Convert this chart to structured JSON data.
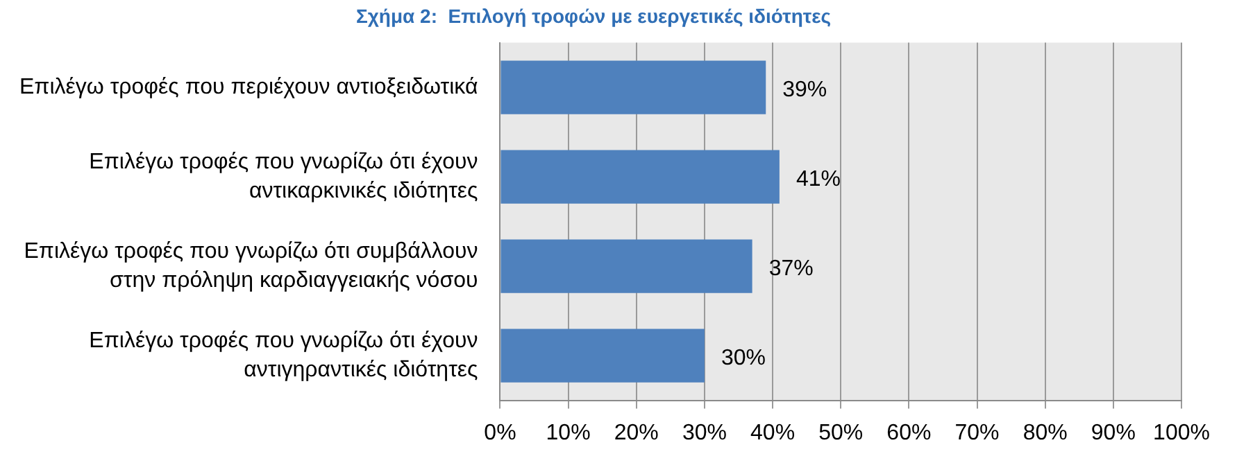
{
  "chart_data": {
    "type": "bar",
    "orientation": "horizontal",
    "title": "Σχήμα 2:  Επιλογή τροφών με ευεργετικές ιδιότητες",
    "categories": [
      "Επιλέγω τροφές που περιέχουν αντιοξειδωτικά",
      "Επιλέγω τροφές που γνωρίζω ότι έχουν αντικαρκινικές ιδιότητες",
      "Επιλέγω τροφές που γνωρίζω ότι συμβάλλουν στην πρόληψη καρδιαγγειακής νόσου",
      "Επιλέγω τροφές που γνωρίζω ότι έχουν αντιγηραντικές ιδιότητες"
    ],
    "values": [
      39,
      41,
      37,
      30
    ],
    "value_labels": [
      "39%",
      "41%",
      "37%",
      "30%"
    ],
    "color": "#4f81bd",
    "xlim": [
      0,
      100
    ],
    "xticks": [
      {
        "value": 0,
        "label": "0%"
      },
      {
        "value": 10,
        "label": "10%"
      },
      {
        "value": 20,
        "label": "20%"
      },
      {
        "value": 30,
        "label": "30%"
      },
      {
        "value": 40,
        "label": "40%"
      },
      {
        "value": 50,
        "label": "50%"
      },
      {
        "value": 60,
        "label": "60%"
      },
      {
        "value": 70,
        "label": "70%"
      },
      {
        "value": 80,
        "label": "80%"
      },
      {
        "value": 90,
        "label": "90%"
      },
      {
        "value": 100,
        "label": "100%"
      }
    ],
    "grid": "x",
    "legend": false
  }
}
